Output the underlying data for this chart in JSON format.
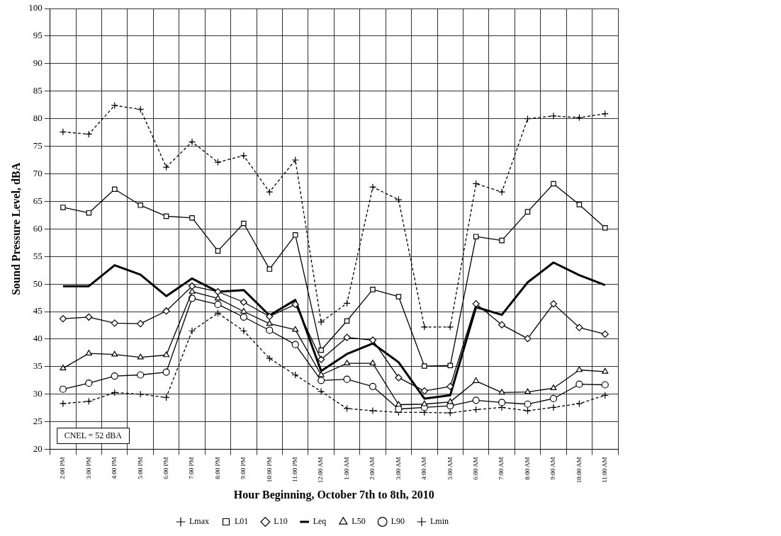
{
  "chart_data": {
    "type": "line",
    "xlabel": "Hour Beginning, October 7th to 8th, 2010",
    "ylabel": "Sound Pressure Level, dBA",
    "categories": [
      "2:00 PM",
      "3:00 PM",
      "4:00 PM",
      "5:00 PM",
      "6:00 PM",
      "7:00 PM",
      "8:00 PM",
      "9:00 PM",
      "10:00 PM",
      "11:00 PM",
      "12:00 AM",
      "1:00 AM",
      "2:00 AM",
      "3:00 AM",
      "4:00 AM",
      "5:00 AM",
      "6:00 AM",
      "7:00 AM",
      "8:00 AM",
      "9:00 AM",
      "10:00 AM",
      "11:00 AM"
    ],
    "series": [
      {
        "name": "Lmax",
        "color": "#000000",
        "marker": "cross",
        "line_style": "dashed",
        "values": [
          77.6,
          77.2,
          82.4,
          81.7,
          71.2,
          75.8,
          72.1,
          73.3,
          66.7,
          72.5,
          43.1,
          46.5,
          67.6,
          65.3,
          42.2,
          42.2,
          68.2,
          66.7,
          80.0,
          80.5,
          80.2,
          80.9
        ]
      },
      {
        "name": "L01",
        "color": "#000000",
        "marker": "square",
        "line_style": "solid",
        "values": [
          63.9,
          62.9,
          67.2,
          64.3,
          62.3,
          62.0,
          56.0,
          61.0,
          52.7,
          58.9,
          38.0,
          43.3,
          49.0,
          47.7,
          35.1,
          35.2,
          58.6,
          57.9,
          63.1,
          68.2,
          64.4,
          60.2
        ]
      },
      {
        "name": "L10",
        "color": "#000000",
        "marker": "diamond",
        "line_style": "solid",
        "values": [
          43.7,
          44.0,
          42.9,
          42.8,
          45.1,
          49.6,
          48.6,
          46.7,
          44.1,
          46.3,
          36.3,
          40.3,
          39.8,
          33.0,
          30.6,
          31.4,
          46.4,
          42.6,
          40.1,
          46.4,
          42.1,
          40.9
        ]
      },
      {
        "name": "Leq",
        "color": "#000000",
        "marker": "none",
        "line_style": "solid",
        "values": [
          49.6,
          49.6,
          53.4,
          51.7,
          47.8,
          51.0,
          48.6,
          48.9,
          44.3,
          47.1,
          34.2,
          37.3,
          39.2,
          35.8,
          29.2,
          29.8,
          45.8,
          44.4,
          50.3,
          53.9,
          51.6,
          49.8
        ]
      },
      {
        "name": "L50",
        "color": "#000000",
        "marker": "triangle",
        "line_style": "solid",
        "values": [
          34.7,
          37.4,
          37.2,
          36.7,
          37.1,
          48.6,
          47.4,
          45.0,
          42.8,
          41.7,
          33.5,
          35.6,
          35.6,
          28.1,
          28.2,
          28.6,
          32.4,
          30.3,
          30.4,
          31.1,
          34.4,
          34.1
        ]
      },
      {
        "name": "L90",
        "color": "#000000",
        "marker": "circle",
        "line_style": "solid",
        "values": [
          30.9,
          32.0,
          33.3,
          33.5,
          34.0,
          47.4,
          46.3,
          44.0,
          41.6,
          39.0,
          32.5,
          32.7,
          31.4,
          27.3,
          27.6,
          27.9,
          28.9,
          28.5,
          28.2,
          29.2,
          31.8,
          31.7
        ]
      },
      {
        "name": "Lmin",
        "color": "#000000",
        "marker": "cross",
        "line_style": "dashed",
        "values": [
          28.3,
          28.7,
          30.3,
          30.0,
          29.4,
          41.5,
          44.7,
          41.5,
          36.5,
          33.5,
          30.5,
          27.4,
          27.0,
          26.7,
          26.7,
          26.6,
          27.2,
          27.6,
          27.0,
          27.6,
          28.3,
          29.8
        ]
      }
    ],
    "ylim": [
      20,
      100
    ],
    "yticks": [
      20,
      25,
      30,
      35,
      40,
      45,
      50,
      55,
      60,
      65,
      70,
      75,
      80,
      85,
      90,
      95,
      100
    ],
    "grid": true,
    "legend": "bottom",
    "annotations": [
      "CNEL = 52 dBA"
    ]
  }
}
